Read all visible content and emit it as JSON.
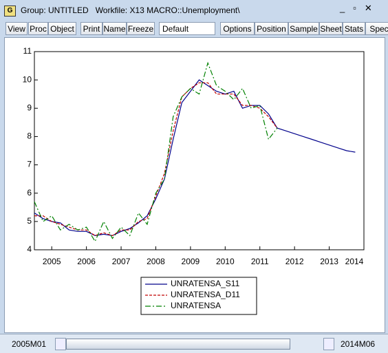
{
  "window": {
    "title": "Group: UNTITLED   Workfile: X13 MACRO::Unemployment\\",
    "toolbar": [
      "View",
      "Proc",
      "Object",
      "Print",
      "Name",
      "Freeze",
      "Default",
      "Options",
      "Position",
      "Sample",
      "Sheet",
      "Stats",
      "Spec"
    ],
    "start": "2005M01",
    "end": "2014M06"
  },
  "chart_data": {
    "type": "line",
    "x": [
      2005,
      2005.25,
      2005.5,
      2005.75,
      2006,
      2006.25,
      2006.5,
      2006.75,
      2007,
      2007.25,
      2007.5,
      2007.75,
      2008,
      2008.25,
      2008.5,
      2008.75,
      2009,
      2009.25,
      2009.5,
      2009.75,
      2010,
      2010.25,
      2010.5,
      2010.75,
      2011,
      2011.25,
      2011.5,
      2011.75,
      2012,
      2012.25,
      2012.5,
      2012.75,
      2013,
      2013.25,
      2013.5,
      2013.75,
      2014,
      2014.25
    ],
    "series": [
      {
        "name": "UNRATENSA_S11",
        "color": "#00008b",
        "dash": "none",
        "values": [
          5.3,
          5.1,
          5.0,
          4.95,
          4.7,
          4.65,
          4.65,
          4.5,
          4.55,
          4.5,
          4.65,
          4.75,
          4.95,
          5.2,
          5.8,
          6.5,
          7.9,
          9.2,
          9.6,
          10.0,
          9.8,
          9.6,
          9.5,
          9.6,
          9.0,
          9.1,
          9.1,
          8.8,
          8.3,
          8.2,
          8.1,
          8.0,
          7.9,
          7.8,
          7.7,
          7.6,
          7.5,
          7.45
        ]
      },
      {
        "name": "UNRATENSA_D11",
        "color": "#c00000",
        "dash": "4 2",
        "values": [
          5.2,
          5.2,
          5.0,
          4.9,
          4.8,
          4.7,
          4.7,
          4.5,
          4.6,
          4.5,
          4.7,
          4.7,
          5.0,
          5.1,
          5.9,
          6.7,
          8.2,
          9.4,
          9.7,
          9.9,
          9.9,
          9.5,
          9.5,
          9.5,
          9.1,
          9.1,
          9.0,
          8.7,
          8.3,
          null,
          null,
          null,
          null,
          null,
          null,
          null,
          null,
          null
        ]
      },
      {
        "name": "UNRATENSA",
        "color": "#008000",
        "dash": "8 3 2 3",
        "values": [
          5.7,
          5.0,
          5.2,
          4.7,
          4.9,
          4.7,
          4.8,
          4.3,
          5.0,
          4.4,
          4.8,
          4.5,
          5.3,
          4.9,
          6.0,
          6.5,
          8.7,
          9.4,
          9.7,
          9.5,
          10.6,
          9.8,
          9.6,
          9.3,
          9.7,
          9.0,
          9.1,
          7.9,
          8.3,
          null,
          null,
          null,
          null,
          null,
          null,
          null,
          null,
          null
        ]
      }
    ],
    "xlim": [
      2005,
      2014.5
    ],
    "xticks": [
      {
        "value": 2005.5,
        "label": "2005"
      },
      {
        "value": 2006.5,
        "label": "2006"
      },
      {
        "value": 2007.5,
        "label": "2007"
      },
      {
        "value": 2008.5,
        "label": "2008"
      },
      {
        "value": 2009.5,
        "label": "2009"
      },
      {
        "value": 2010.5,
        "label": "2010"
      },
      {
        "value": 2011.5,
        "label": "2011"
      },
      {
        "value": 2012.5,
        "label": "2012"
      },
      {
        "value": 2013.5,
        "label": "2013"
      },
      {
        "value": 2014.5,
        "label": "2014"
      }
    ],
    "ylim": [
      4,
      11
    ],
    "yticks": [
      4,
      5,
      6,
      7,
      8,
      9,
      10,
      11
    ]
  }
}
